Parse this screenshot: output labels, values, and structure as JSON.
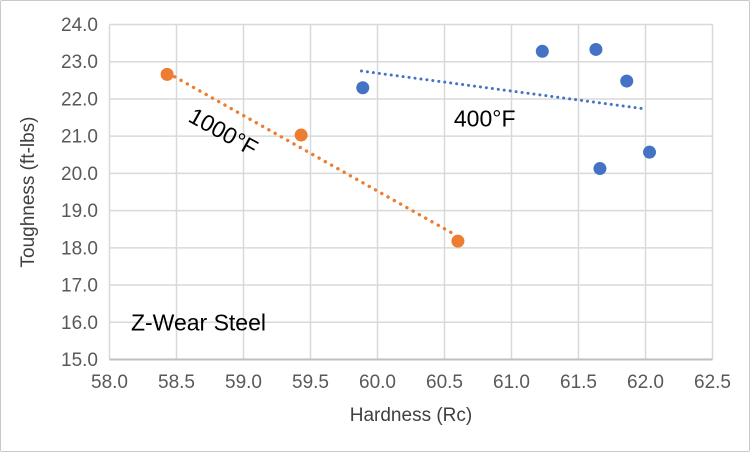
{
  "chart_data": {
    "type": "scatter",
    "title": "",
    "xlabel": "Hardness (Rc)",
    "ylabel": "Toughness (ft-lbs)",
    "xlim": [
      58.0,
      62.5
    ],
    "ylim": [
      15.0,
      24.0
    ],
    "x_tick_step": 0.5,
    "y_tick_step": 1.0,
    "tick_decimals": 1,
    "grid": true,
    "legend_position": "none",
    "series": [
      {
        "name": "1000°F",
        "color": "#ED7D31",
        "marker": "circle",
        "marker_radius": 6.5,
        "points": [
          [
            58.43,
            22.66
          ],
          [
            59.43,
            21.03
          ],
          [
            60.6,
            18.18
          ]
        ],
        "trendline": {
          "style": "dotted",
          "x1": 58.44,
          "y1": 22.69,
          "x2": 60.57,
          "y2": 18.37,
          "stroke_width": 3.4,
          "dash": "0.1 7.1"
        }
      },
      {
        "name": "400°F",
        "color": "#4472C4",
        "marker": "circle",
        "marker_radius": 6.5,
        "points": [
          [
            59.89,
            22.3
          ],
          [
            61.23,
            23.28
          ],
          [
            61.63,
            23.33
          ],
          [
            61.66,
            20.13
          ],
          [
            61.86,
            22.48
          ],
          [
            62.03,
            20.57
          ]
        ],
        "trendline": {
          "style": "dotted",
          "x1": 59.88,
          "y1": 22.75,
          "x2": 61.98,
          "y2": 21.74,
          "stroke_width": 3.0,
          "dash": "0.1 5.9"
        }
      }
    ],
    "annotations": [
      {
        "text": "1000°F",
        "x": 58.85,
        "y": 21.12,
        "rotate": 29,
        "anchor": "middle",
        "color": "#000000"
      },
      {
        "text": "400°F",
        "x": 60.8,
        "y": 21.47,
        "rotate": 0,
        "anchor": "middle",
        "color": "#000000"
      },
      {
        "text": "Z-Wear Steel",
        "x": 58.16,
        "y": 16.0,
        "rotate": 0,
        "anchor": "start",
        "color": "#000000"
      }
    ],
    "colors": {
      "gridline": "#D9D9D9",
      "axis_line": "#BFBFBF",
      "tick_label": "#595959",
      "axis_title": "#404040",
      "background": "#FFFFFF",
      "border": "#C9C9C9"
    }
  }
}
